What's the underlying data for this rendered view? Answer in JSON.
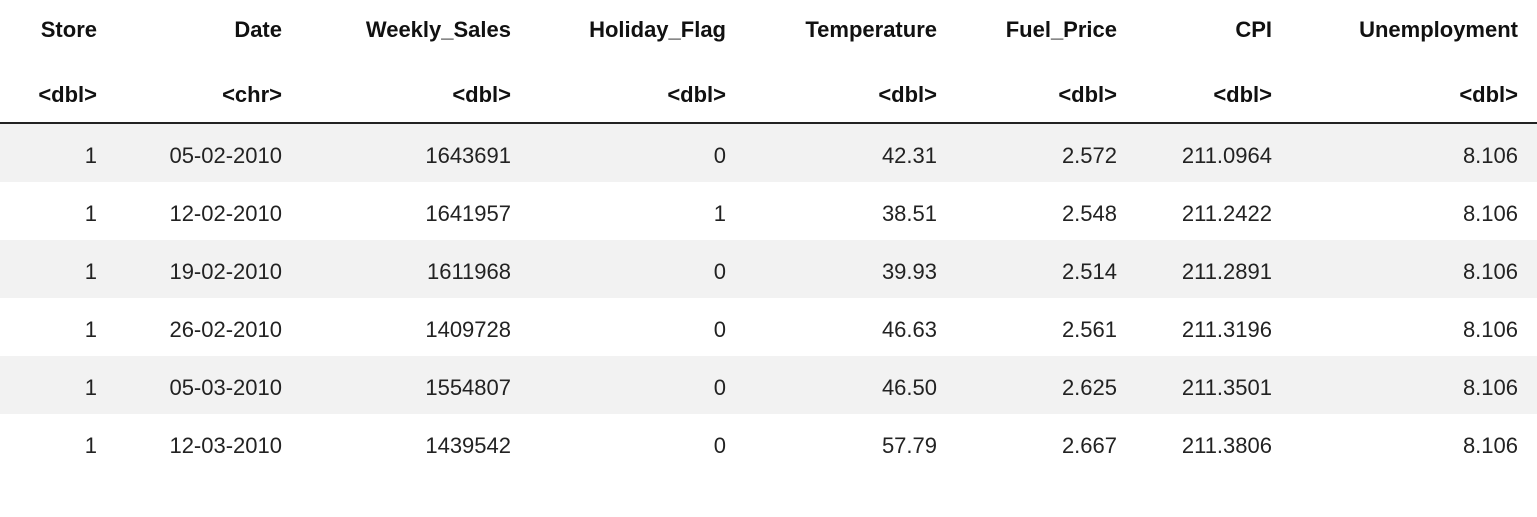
{
  "table": {
    "columns": [
      {
        "name": "Store",
        "type": "<dbl>"
      },
      {
        "name": "Date",
        "type": "<chr>"
      },
      {
        "name": "Weekly_Sales",
        "type": "<dbl>"
      },
      {
        "name": "Holiday_Flag",
        "type": "<dbl>"
      },
      {
        "name": "Temperature",
        "type": "<dbl>"
      },
      {
        "name": "Fuel_Price",
        "type": "<dbl>"
      },
      {
        "name": "CPI",
        "type": "<dbl>"
      },
      {
        "name": "Unemployment",
        "type": "<dbl>"
      }
    ],
    "rows": [
      [
        "1",
        "05-02-2010",
        "1643691",
        "0",
        "42.31",
        "2.572",
        "211.0964",
        "8.106"
      ],
      [
        "1",
        "12-02-2010",
        "1641957",
        "1",
        "38.51",
        "2.548",
        "211.2422",
        "8.106"
      ],
      [
        "1",
        "19-02-2010",
        "1611968",
        "0",
        "39.93",
        "2.514",
        "211.2891",
        "8.106"
      ],
      [
        "1",
        "26-02-2010",
        "1409728",
        "0",
        "46.63",
        "2.561",
        "211.3196",
        "8.106"
      ],
      [
        "1",
        "05-03-2010",
        "1554807",
        "0",
        "46.50",
        "2.625",
        "211.3501",
        "8.106"
      ],
      [
        "1",
        "12-03-2010",
        "1439542",
        "0",
        "57.79",
        "2.667",
        "211.3806",
        "8.106"
      ]
    ]
  }
}
